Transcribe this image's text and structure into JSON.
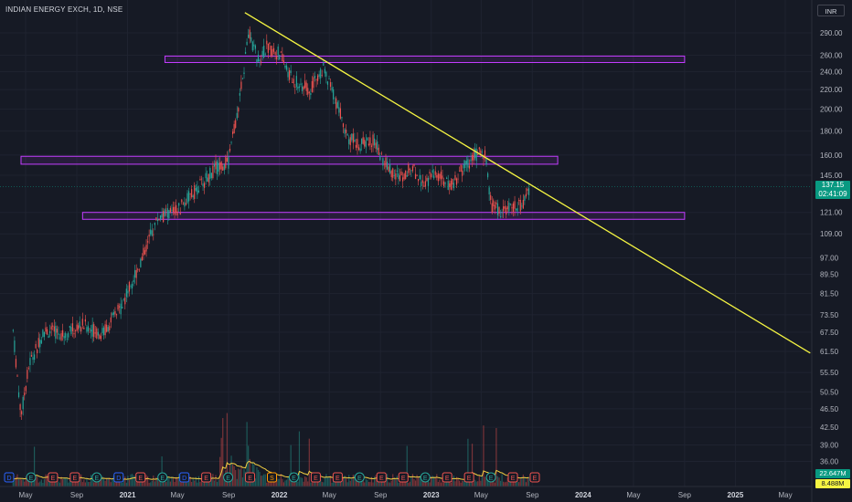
{
  "header": {
    "title": "INDIAN ENERGY EXCH, 1D, NSE",
    "currency": "INR"
  },
  "last_price": {
    "price": "137.15",
    "countdown": "02:41:09"
  },
  "volume_labels": {
    "a": "22.647M",
    "b": "8.488M"
  },
  "colors": {
    "up": "#26a69a",
    "down": "#ef5350",
    "trend": "#f5f542",
    "zone": "#c33cff",
    "volume_ma": "#f5d142"
  },
  "chart_data": {
    "type": "candlestick",
    "title": "INDIAN ENERGY EXCH, 1D, NSE",
    "x_ticks": [
      "May",
      "Sep",
      "2021",
      "May",
      "Sep",
      "2022",
      "May",
      "Sep",
      "2023",
      "May",
      "Sep",
      "2024",
      "May",
      "Sep",
      "2025",
      "May"
    ],
    "y_ticks": [
      "290.00",
      "260.00",
      "240.00",
      "220.00",
      "200.00",
      "180.00",
      "160.00",
      "145.00",
      "121.00",
      "109.00",
      "97.00",
      "89.50",
      "81.50",
      "73.50",
      "67.50",
      "61.50",
      "55.50",
      "50.50",
      "46.50",
      "42.50",
      "39.00",
      "36.00"
    ],
    "y_scale": "log",
    "price_path": [
      [
        "2020-04-01",
        68
      ],
      [
        "2020-04-20",
        45
      ],
      [
        "2020-05-10",
        58
      ],
      [
        "2020-06-15",
        68
      ],
      [
        "2020-08-01",
        67
      ],
      [
        "2020-09-15",
        70
      ],
      [
        "2020-11-01",
        67
      ],
      [
        "2020-12-15",
        76
      ],
      [
        "2021-02-01",
        95
      ],
      [
        "2021-03-15",
        118
      ],
      [
        "2021-05-01",
        122
      ],
      [
        "2021-06-15",
        135
      ],
      [
        "2021-08-01",
        150
      ],
      [
        "2021-09-01",
        155
      ],
      [
        "2021-10-01",
        220
      ],
      [
        "2021-10-20",
        290
      ],
      [
        "2021-11-10",
        255
      ],
      [
        "2021-12-01",
        270
      ],
      [
        "2022-01-01",
        262
      ],
      [
        "2022-02-01",
        230
      ],
      [
        "2022-03-15",
        220
      ],
      [
        "2022-04-15",
        245
      ],
      [
        "2022-05-15",
        210
      ],
      [
        "2022-06-15",
        175
      ],
      [
        "2022-07-15",
        168
      ],
      [
        "2022-08-15",
        172
      ],
      [
        "2022-09-15",
        152
      ],
      [
        "2022-10-15",
        144
      ],
      [
        "2022-11-15",
        150
      ],
      [
        "2022-12-15",
        140
      ],
      [
        "2023-01-15",
        146
      ],
      [
        "2023-02-15",
        136
      ],
      [
        "2023-03-15",
        148
      ],
      [
        "2023-04-15",
        160
      ],
      [
        "2023-05-10",
        162
      ],
      [
        "2023-05-25",
        125
      ],
      [
        "2023-06-15",
        122
      ],
      [
        "2023-07-15",
        124
      ],
      [
        "2023-08-10",
        125
      ],
      [
        "2023-08-25",
        137
      ]
    ],
    "trendline": [
      [
        "2021-10-10",
        320
      ],
      [
        "2025-06-30",
        61
      ]
    ],
    "zones": [
      {
        "from": "2021-04-01",
        "to": "2024-09-01",
        "low": 251,
        "high": 259
      },
      {
        "from": "2020-04-20",
        "to": "2023-11-01",
        "low": 153,
        "high": 159
      },
      {
        "from": "2020-09-15",
        "to": "2024-09-01",
        "low": 117,
        "high": 121
      }
    ],
    "event_markers": [
      "D",
      "E",
      "E",
      "E",
      "E",
      "D",
      "E",
      "E",
      "D",
      "E",
      "E",
      "E",
      "S",
      "E",
      "E",
      "E",
      "E",
      "E",
      "E",
      "E",
      "E",
      "E",
      "E",
      "E",
      "E"
    ]
  }
}
